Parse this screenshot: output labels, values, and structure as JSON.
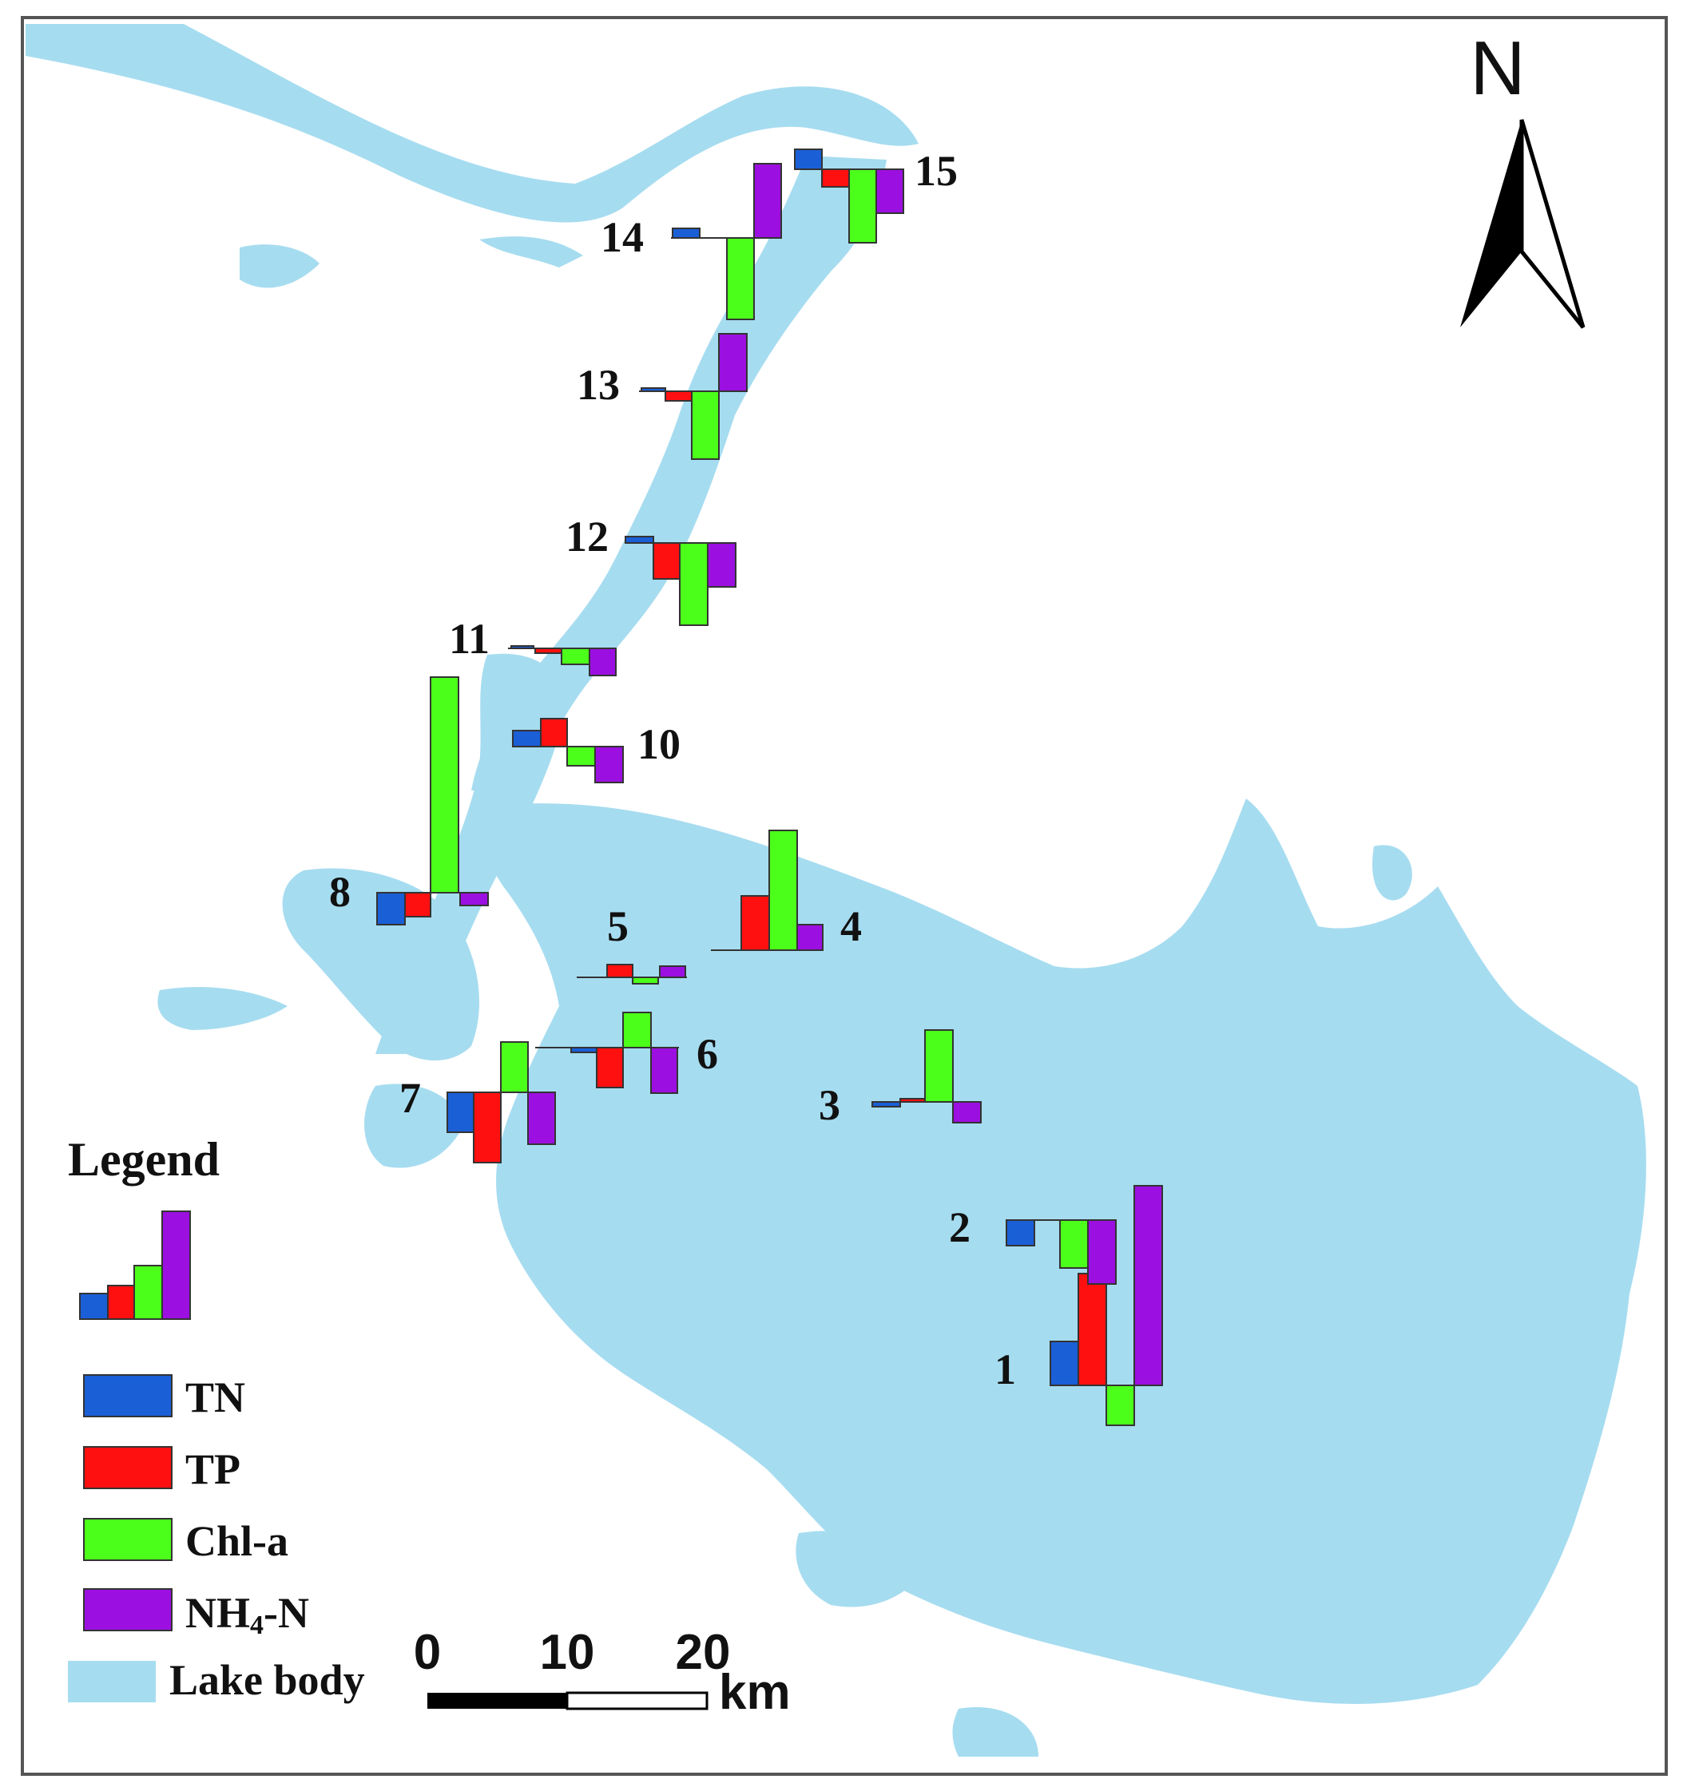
{
  "colors": {
    "TN": "#1a5fd6",
    "TP": "#ff1010",
    "Chl-a": "#4cff1a",
    "NH4-N": "#9b10e0",
    "lake": "#a6dcf0",
    "frame": "#555555"
  },
  "legend": {
    "title": "Legend",
    "entries": [
      {
        "key": "TN",
        "label": "TN"
      },
      {
        "key": "TP",
        "label": "TP"
      },
      {
        "key": "Chl-a",
        "label": "Chl-a"
      },
      {
        "key": "NH4-N",
        "label": "NH4-N",
        "label_main": "NH",
        "label_sub": "4",
        "label_tail": "-N"
      },
      {
        "key": "lake",
        "label": "Lake body"
      }
    ]
  },
  "north_arrow": {
    "label": "N"
  },
  "scale_bar": {
    "ticks": [
      "0",
      "10",
      "20"
    ],
    "unit": "km"
  },
  "sites": [
    {
      "id": "1",
      "label": "1"
    },
    {
      "id": "2",
      "label": "2"
    },
    {
      "id": "3",
      "label": "3"
    },
    {
      "id": "4",
      "label": "4"
    },
    {
      "id": "5",
      "label": "5"
    },
    {
      "id": "6",
      "label": "6"
    },
    {
      "id": "7",
      "label": "7"
    },
    {
      "id": "8",
      "label": "8"
    },
    {
      "id": "10",
      "label": "10"
    },
    {
      "id": "11",
      "label": "11"
    },
    {
      "id": "12",
      "label": "12"
    },
    {
      "id": "13",
      "label": "13"
    },
    {
      "id": "14",
      "label": "14"
    },
    {
      "id": "15",
      "label": "15"
    }
  ]
}
